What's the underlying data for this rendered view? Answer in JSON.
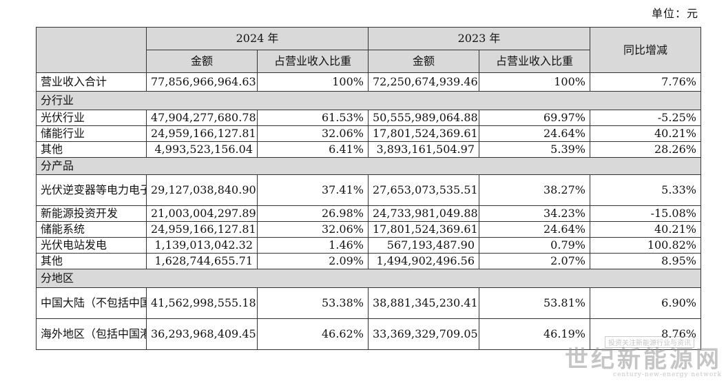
{
  "unit_label": "单位：元",
  "header": {
    "year_2024": "2024 年",
    "year_2023": "2023 年",
    "yoy": "同比增减",
    "amount": "金额",
    "share": "占营业收入比重"
  },
  "total": {
    "label": "营业收入合计",
    "amt2024": "77,856,966,964.63",
    "pct2024": "100%",
    "amt2023": "72,250,674,939.46",
    "pct2023": "100%",
    "yoy": "7.76%"
  },
  "sections": {
    "industry": {
      "title": "分行业",
      "rows": [
        {
          "label": "光伏行业",
          "amt2024": "47,904,277,680.78",
          "pct2024": "61.53%",
          "amt2023": "50,555,989,064.88",
          "pct2023": "69.97%",
          "yoy": "-5.25%"
        },
        {
          "label": "储能行业",
          "amt2024": "24,959,166,127.81",
          "pct2024": "32.06%",
          "amt2023": "17,801,524,369.61",
          "pct2023": "24.64%",
          "yoy": "40.21%"
        },
        {
          "label": "其他",
          "amt2024": "4,993,523,156.04",
          "pct2024": "6.41%",
          "amt2023": "3,893,161,504.97",
          "pct2023": "5.39%",
          "yoy": "28.26%"
        }
      ]
    },
    "product": {
      "title": "分产品",
      "rows": [
        {
          "label": "光伏逆变器等电力电子转换设备",
          "amt2024": "29,127,038,840.90",
          "pct2024": "37.41%",
          "amt2023": "27,653,073,535.51",
          "pct2023": "38.27%",
          "yoy": "5.33%"
        },
        {
          "label": "新能源投资开发",
          "amt2024": "21,003,004,297.89",
          "pct2024": "26.98%",
          "amt2023": "24,733,981,049.88",
          "pct2023": "34.23%",
          "yoy": "-15.08%"
        },
        {
          "label": "储能系统",
          "amt2024": "24,959,166,127.81",
          "pct2024": "32.06%",
          "amt2023": "17,801,524,369.61",
          "pct2023": "24.64%",
          "yoy": "40.21%"
        },
        {
          "label": "光伏电站发电",
          "amt2024": "1,139,013,042.32",
          "pct2024": "1.46%",
          "amt2023": "567,193,487.90",
          "pct2023": "0.79%",
          "yoy": "100.82%"
        },
        {
          "label": "其他",
          "amt2024": "1,628,744,655.71",
          "pct2024": "2.09%",
          "amt2023": "1,494,902,496.56",
          "pct2023": "2.07%",
          "yoy": "8.95%"
        }
      ]
    },
    "region": {
      "title": "分地区",
      "rows": [
        {
          "label": "中国大陆（不包括中国港澳台）",
          "amt2024": "41,562,998,555.18",
          "pct2024": "53.38%",
          "amt2023": "38,881,345,230.41",
          "pct2023": "53.81%",
          "yoy": "6.90%"
        },
        {
          "label": "海外地区（包括中国港澳台）",
          "amt2024": "36,293,968,409.45",
          "pct2024": "46.62%",
          "amt2023": "33,369,329,709.05",
          "pct2023": "46.19%",
          "yoy": "8.76%"
        }
      ]
    }
  },
  "watermark": {
    "top": "投资关注新能源行业与资讯",
    "main": "世纪新能源网",
    "sub": "century-new-energy network"
  }
}
